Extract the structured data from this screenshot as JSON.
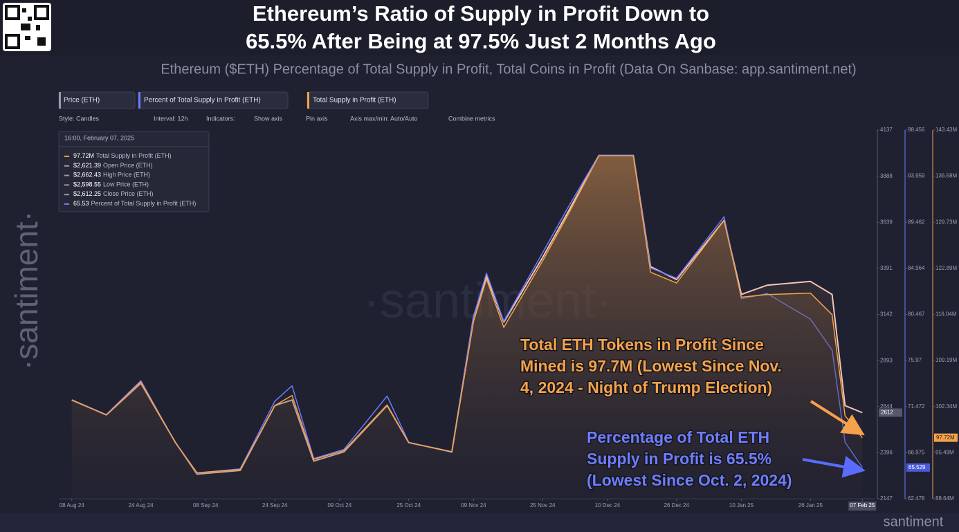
{
  "header": {
    "title_lines": [
      "Ethereum’s Ratio of Supply in Profit Down to",
      "65.5% After Being at 97.5% Just 2 Months Ago"
    ],
    "subtitle": "Ethereum ($ETH) Percentage of Total Supply in Profit, Total Coins in Profit (Data On Sanbase: app.santiment.net)"
  },
  "toolbar": {
    "items": [
      "Style: Candles",
      "Interval: 12h",
      "Indicators:",
      "Show axis",
      "Pin axis",
      "Axis max/min: Auto/Auto",
      "Combine metrics"
    ]
  },
  "tooltip": {
    "date": "16:00, February 07, 2025",
    "rows": [
      {
        "value": "97.72M",
        "label": "Total Supply in Profit (ETH)",
        "color": "#f5a24a"
      },
      {
        "value": "$2,621.39",
        "label": "Open Price (ETH)",
        "color": "#9a9aa8"
      },
      {
        "value": "$2,662.43",
        "label": "High Price (ETH)",
        "color": "#9a9aa8"
      },
      {
        "value": "$2,598.55",
        "label": "Low Price (ETH)",
        "color": "#9a9aa8"
      },
      {
        "value": "$2,612.25",
        "label": "Close Price (ETH)",
        "color": "#9a9aa8"
      },
      {
        "value": "65.53",
        "label": "Percent of Total Supply in Profit (ETH)",
        "color": "#6b7bff"
      }
    ]
  },
  "watermark": "·santiment·",
  "side_logo": "·santiment·",
  "footer_logo": "santiment",
  "chart_data": {
    "type": "line",
    "x": [
      "2024-08-08",
      "2024-08-16",
      "2024-08-24",
      "2024-09-01",
      "2024-09-06",
      "2024-09-16",
      "2024-09-24",
      "2024-09-28",
      "2024-10-03",
      "2024-10-10",
      "2024-10-20",
      "2024-10-25",
      "2024-11-04",
      "2024-11-09",
      "2024-11-12",
      "2024-11-16",
      "2024-11-25",
      "2024-12-01",
      "2024-12-08",
      "2024-12-16",
      "2024-12-20",
      "2024-12-26",
      "2025-01-06",
      "2025-01-10",
      "2025-01-16",
      "2025-01-26",
      "2025-01-31",
      "2025-02-03",
      "2025-02-07"
    ],
    "xlim": [
      "2024-08-05",
      "2025-02-10"
    ],
    "xticks": [
      {
        "value": "2024-08-08",
        "label": "08 Aug 24"
      },
      {
        "value": "2024-08-24",
        "label": "24 Aug 24"
      },
      {
        "value": "2024-09-08",
        "label": "08 Sep 24"
      },
      {
        "value": "2024-09-24",
        "label": "24 Sep 24"
      },
      {
        "value": "2024-10-09",
        "label": "09 Oct 24"
      },
      {
        "value": "2024-10-25",
        "label": "25 Oct 24"
      },
      {
        "value": "2024-11-09",
        "label": "09 Nov 24"
      },
      {
        "value": "2024-11-25",
        "label": "25 Nov 24"
      },
      {
        "value": "2024-12-10",
        "label": "10 Dec 24"
      },
      {
        "value": "2024-12-26",
        "label": "26 Dec 24"
      },
      {
        "value": "2025-01-10",
        "label": "10 Jan 25"
      },
      {
        "value": "2025-01-26",
        "label": "26 Jan 25"
      },
      {
        "value": "2025-02-07",
        "label": "07 Feb 25"
      }
    ],
    "ylim": [
      2147,
      4137
    ],
    "yticks": [
      4137,
      3888,
      3639,
      3391,
      3142,
      2893,
      2644,
      2396,
      2147
    ],
    "y2lim": [
      62.478,
      98.456
    ],
    "y2ticks": [
      98.456,
      93.959,
      89.462,
      84.964,
      80.467,
      75.97,
      71.472,
      66.975,
      62.478
    ],
    "y3lim": [
      88.64,
      143.43
    ],
    "y3ticks": [
      {
        "value": 143.43,
        "label": "143.43M"
      },
      {
        "value": 136.58,
        "label": "136.58M"
      },
      {
        "value": 129.73,
        "label": "129.73M"
      },
      {
        "value": 122.89,
        "label": "122.89M"
      },
      {
        "value": 116.04,
        "label": "116.04M"
      },
      {
        "value": 109.19,
        "label": "109.19M"
      },
      {
        "value": 102.34,
        "label": "102.34M"
      },
      {
        "value": 95.49,
        "label": "95.49M"
      },
      {
        "value": 88.64,
        "label": "88.64M"
      }
    ],
    "series": [
      {
        "name": "Price (ETH)",
        "color": "#f2c6b6",
        "axis": "y",
        "values": [
          2680,
          2600,
          2770,
          2450,
          2280,
          2300,
          2650,
          2680,
          2350,
          2400,
          2650,
          2450,
          2400,
          3130,
          3350,
          3100,
          3450,
          3700,
          4000,
          4000,
          3400,
          3330,
          3650,
          3250,
          3300,
          3320,
          3250,
          2650,
          2612
        ]
      },
      {
        "name": "Percent of Total Supply in Profit (ETH)",
        "color": "#6b7bff",
        "axis": "y2",
        "values": [
          72.1,
          70.7,
          74.0,
          67.9,
          65.0,
          65.4,
          72.0,
          73.5,
          66.4,
          67.3,
          72.5,
          68.0,
          67.0,
          80.3,
          84.5,
          79.8,
          86.5,
          91.0,
          96.0,
          96.0,
          85.0,
          84.0,
          90.0,
          82.0,
          82.5,
          80.0,
          77.0,
          68.0,
          65.529
        ]
      },
      {
        "name": "Total Supply in Profit (ETH)",
        "color": "#f5a24a",
        "axis": "y3",
        "values": [
          103.3,
          101.1,
          106.0,
          97.0,
          92.5,
          93.0,
          102.5,
          104.0,
          94.5,
          95.8,
          102.6,
          97.0,
          95.6,
          115.0,
          121.3,
          114.1,
          124.0,
          131.0,
          139.6,
          139.6,
          122.3,
          120.7,
          130.0,
          118.6,
          119.0,
          119.2,
          116.0,
          101.0,
          97.72
        ],
        "last_value_label": "97.72M"
      }
    ],
    "annotations": [
      {
        "lines": [
          "Total ETH Tokens in Profit Since",
          "Mined is 97.7M (Lowest Since Nov.",
          "4, 2024 - Night of Trump Election)"
        ],
        "color": "#f5a24a"
      },
      {
        "lines": [
          "Percentage of Total ETH",
          "Supply in Profit is 65.5%",
          "(Lowest Since Oct. 2, 2024)"
        ],
        "color": "#6f7dff"
      }
    ]
  }
}
